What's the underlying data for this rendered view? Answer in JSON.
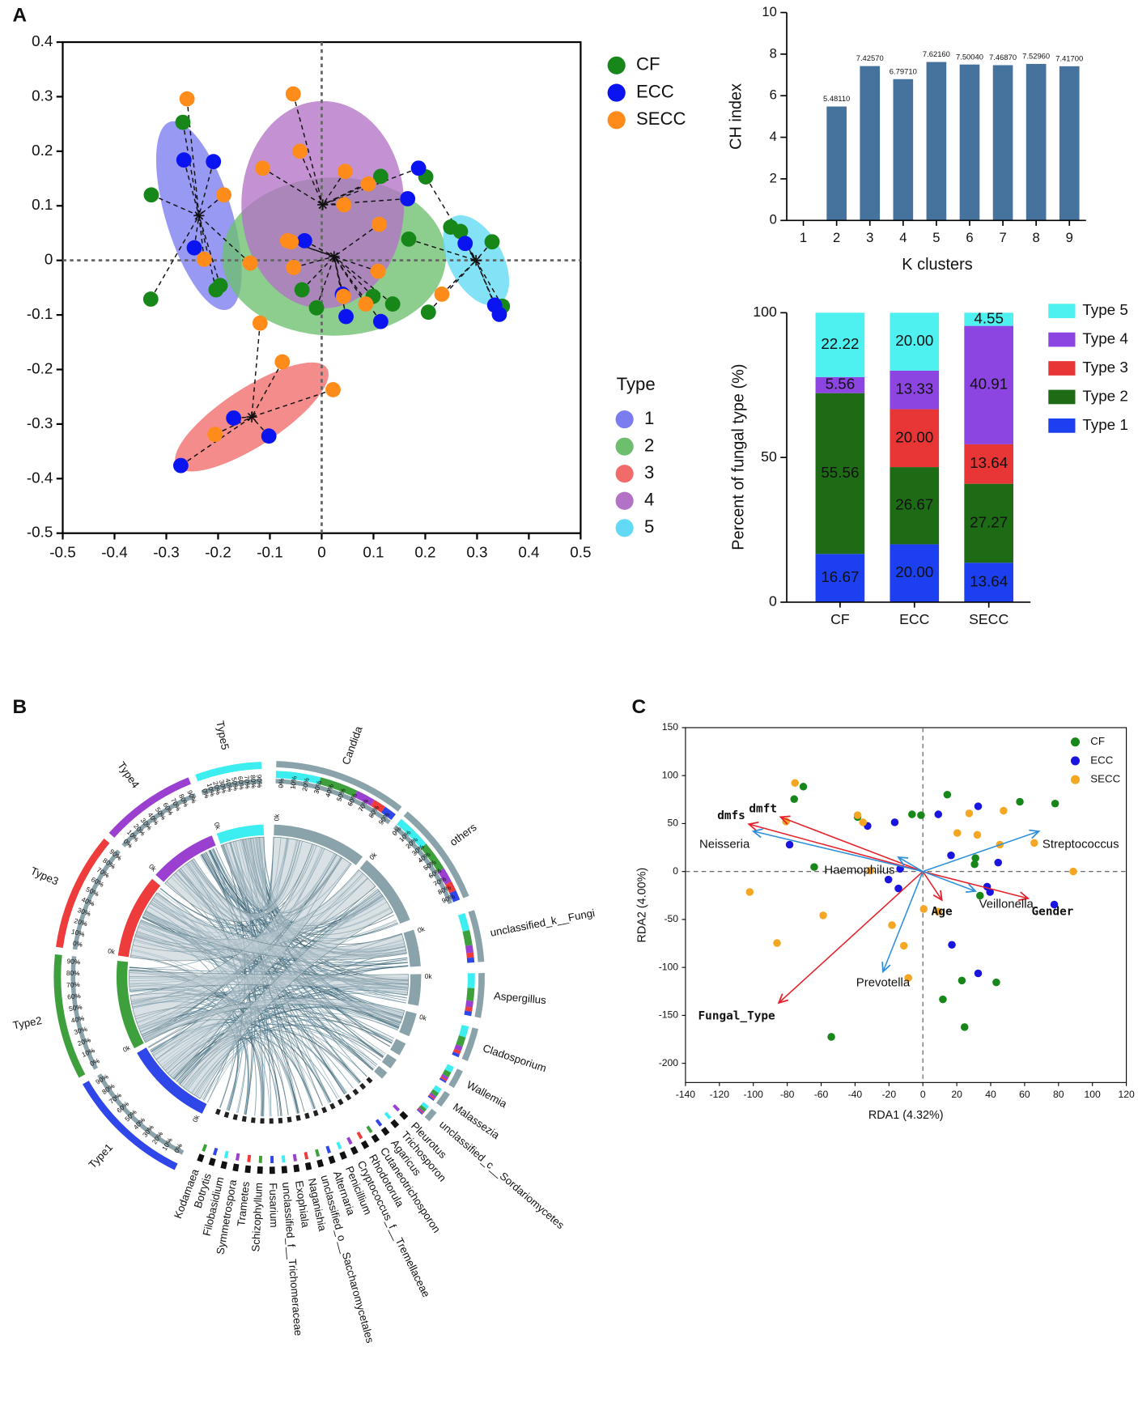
{
  "chart_data": [
    {
      "type": "scatter",
      "panel": "A",
      "xlim": [
        -0.5,
        0.5
      ],
      "xticks": [
        -0.5,
        -0.4,
        -0.3,
        -0.2,
        -0.1,
        0,
        0.1,
        0.2,
        0.3,
        0.4,
        0.5
      ],
      "ylim": [
        -0.5,
        0.4
      ],
      "yticks": [
        -0.5,
        -0.4,
        -0.3,
        -0.2,
        -0.1,
        0,
        0.1,
        0.2,
        0.3,
        0.4
      ],
      "series": [
        {
          "name": "CF",
          "color": "#17871a",
          "x": [
            -0.268,
            -0.329,
            -0.33,
            -0.204,
            -0.196,
            0.114,
            0.201,
            0.168,
            0.249,
            0.268,
            0.329,
            0.349,
            -0.038,
            -0.01,
            0.099,
            0.137,
            0.206
          ],
          "y": [
            0.253,
            0.12,
            -0.071,
            -0.054,
            -0.046,
            0.154,
            0.153,
            0.039,
            0.061,
            0.053,
            0.034,
            -0.084,
            -0.054,
            -0.087,
            -0.066,
            -0.08,
            -0.095
          ]
        },
        {
          "name": "ECC",
          "color": "#0a14f0",
          "x": [
            -0.266,
            -0.209,
            -0.246,
            -0.033,
            0.187,
            0.166,
            0.277,
            0.334,
            0.343,
            0.047,
            0.114,
            0.04,
            -0.17,
            -0.102,
            -0.272
          ],
          "y": [
            0.184,
            0.181,
            0.023,
            0.036,
            0.169,
            0.113,
            0.031,
            -0.082,
            -0.099,
            -0.103,
            -0.112,
            -0.062,
            -0.289,
            -0.322,
            -0.376
          ]
        },
        {
          "name": "SECC",
          "color": "#ff8c1a",
          "x": [
            -0.26,
            -0.055,
            -0.042,
            -0.114,
            -0.189,
            0.045,
            0.09,
            0.043,
            0.111,
            -0.066,
            -0.059,
            -0.227,
            -0.138,
            -0.054,
            0.109,
            0.042,
            0.085,
            0.232,
            -0.119,
            -0.076,
            0.022,
            -0.206
          ],
          "y": [
            0.296,
            0.305,
            0.2,
            0.169,
            0.12,
            0.163,
            0.14,
            0.102,
            0.066,
            0.036,
            0.034,
            0.002,
            -0.005,
            -0.013,
            -0.02,
            -0.066,
            -0.08,
            -0.062,
            -0.115,
            -0.186,
            -0.237,
            -0.319
          ]
        }
      ],
      "cluster_title": "Type",
      "clusters": [
        {
          "name": "1",
          "color": "#7b7cf0",
          "cx": -0.237,
          "cy": 0.082,
          "rx": 0.064,
          "ry": 0.18,
          "angle": -17
        },
        {
          "name": "2",
          "color": "#6dbf6d",
          "cx": 0.024,
          "cy": 0.007,
          "rx": 0.216,
          "ry": 0.145,
          "angle": 0
        },
        {
          "name": "3",
          "color": "#f26b6b",
          "cx": -0.135,
          "cy": -0.287,
          "rx": 0.173,
          "ry": 0.053,
          "angle": -33
        },
        {
          "name": "4",
          "color": "#b472c6",
          "cx": 0.002,
          "cy": 0.102,
          "rx": 0.157,
          "ry": 0.19,
          "angle": 0
        },
        {
          "name": "5",
          "color": "#62daf5",
          "cx": 0.298,
          "cy": 0.0,
          "rx": 0.052,
          "ry": 0.09,
          "angle": -28
        }
      ]
    },
    {
      "type": "bar",
      "xlabel": "K clusters",
      "ylabel": "CH index",
      "color": "#46739e",
      "categories": [
        "1",
        "2",
        "3",
        "4",
        "5",
        "6",
        "7",
        "8",
        "9"
      ],
      "values": [
        null,
        5.4811,
        7.4257,
        6.7971,
        7.6216,
        7.5004,
        7.4687,
        7.5296,
        7.417
      ],
      "value_labels": [
        null,
        "5.48110",
        "7.42570",
        "6.79710",
        "7.62160",
        "7.50040",
        "7.46870",
        "7.52960",
        "7.41700"
      ],
      "ylim": [
        0,
        10
      ],
      "yticks": [
        0,
        2,
        4,
        6,
        8,
        10
      ]
    },
    {
      "type": "bar",
      "stacked": true,
      "ylabel": "Percent of fungal type (%)",
      "categories": [
        "CF",
        "ECC",
        "SECC"
      ],
      "ylim": [
        0,
        100
      ],
      "yticks": [
        0,
        50,
        100
      ],
      "series": [
        {
          "name": "Type 1",
          "color": "#1c3ff0",
          "values": [
            16.67,
            20,
            13.64
          ],
          "value_labels": [
            "16.67",
            "20.00",
            "13.64"
          ]
        },
        {
          "name": "Type 2",
          "color": "#1e6b16",
          "values": [
            55.56,
            26.67,
            27.27
          ],
          "value_labels": [
            "55.56",
            "26.67",
            "27.27"
          ]
        },
        {
          "name": "Type 3",
          "color": "#e83535",
          "values": [
            0,
            20,
            13.64
          ],
          "value_labels": [
            null,
            "20.00",
            "13.64"
          ]
        },
        {
          "name": "Type 4",
          "color": "#8c45e0",
          "values": [
            5.56,
            13.33,
            40.91
          ],
          "value_labels": [
            "5.56",
            "13.33",
            "40.91"
          ]
        },
        {
          "name": "Type 5",
          "color": "#4ef0f0",
          "values": [
            22.22,
            20,
            4.55
          ],
          "value_labels": [
            "22.22",
            "20.00",
            "4.55"
          ]
        }
      ]
    },
    {
      "type": "chord",
      "panel": "B",
      "groups": [
        {
          "name": "Type1",
          "color": "#2f46e8"
        },
        {
          "name": "Type2",
          "color": "#3ea03c"
        },
        {
          "name": "Type3",
          "color": "#ee3b3b"
        },
        {
          "name": "Type4",
          "color": "#9a3fd0"
        },
        {
          "name": "Type5",
          "color": "#3ceef0"
        }
      ],
      "genera": [
        "Candida",
        "others",
        "unclassified_k__Fungi",
        "Aspergillus",
        "Cladosporium",
        "Wallemia",
        "Malassezia",
        "unclassified_c__Sordariomycetes",
        "Pleurotus",
        "Trichosporon",
        "Agaricus",
        "Cutaneotrichosporon",
        "Rhodotorula",
        "Cryptococcus_f__Tremellaceae",
        "Penicillium",
        "Alternaria",
        "unclassified_o__Saccharomycetales",
        "Naganishia",
        "Exophiala",
        "unclassified_f__Trichomeraceae",
        "Fusarium",
        "Schizophyllum",
        "Trametes",
        "Symmetrospora",
        "Filobasidium",
        "Botrytis",
        "Kodamaea"
      ],
      "ring_ticks": [
        "0%",
        "10%",
        "20%",
        "30%",
        "40%",
        "50%",
        "60%",
        "70%",
        "80%",
        "90%"
      ],
      "zero_label": "0k"
    },
    {
      "type": "scatter",
      "panel": "C",
      "xlabel": "RDA1 (4.32%)",
      "ylabel": "RDA2 (4.00%)",
      "xlim": [
        -140,
        120
      ],
      "xticks": [
        -140,
        -120,
        -100,
        -80,
        -60,
        -40,
        -20,
        0,
        20,
        40,
        60,
        80,
        100,
        120
      ],
      "ylim": [
        -220,
        150
      ],
      "yticks": [
        -200,
        -150,
        -100,
        -50,
        0,
        50,
        100,
        150
      ],
      "series": [
        {
          "name": "CF",
          "color": "#17871a",
          "x": [
            -70.5,
            -75.9,
            -38.5,
            -6.4,
            -1.1,
            14.4,
            31.0,
            30.5,
            57.2,
            78.0,
            33.7,
            -64.1,
            11.8,
            23.0,
            24.6,
            43.3,
            -54.0
          ],
          "y": [
            88.5,
            75.5,
            56.8,
            59.6,
            58.7,
            80.1,
            14.0,
            7.5,
            72.7,
            70.8,
            -25.2,
            4.7,
            -133.3,
            -113.7,
            -162.2,
            -115.6,
            -172.4
          ]
        },
        {
          "name": "ECC",
          "color": "#1a14e0",
          "x": [
            -32.6,
            -16.6,
            9.1,
            32.6,
            16.6,
            44.4,
            39.6,
            37.9,
            -13.4,
            -20.3,
            -14.4,
            17.1,
            32.6,
            77.5,
            -78.6
          ],
          "y": [
            47.5,
            51.3,
            59.6,
            68.0,
            16.8,
            9.3,
            -21.4,
            -15.8,
            2.8,
            -8.4,
            -17.7,
            -76.4,
            -106.2,
            -34.5,
            28.0
          ]
        },
        {
          "name": "SECC",
          "color": "#f5a623",
          "x": [
            -75.4,
            -80.7,
            -38.5,
            -35.3,
            27.3,
            47.6,
            20.3,
            32.1,
            45.4,
            65.7,
            88.7,
            -31.0,
            0.5,
            9.1,
            -18.2,
            -58.8,
            -86.0,
            -102.1,
            -8.6,
            -11.2
          ],
          "y": [
            92.3,
            52.2,
            58.7,
            51.3,
            60.6,
            63.4,
            40.1,
            38.2,
            28.0,
            29.8,
            0,
            0.9,
            -39.1,
            -41.9,
            -55.9,
            -45.7,
            -74.6,
            -21.4,
            -110.9,
            -77.4
          ]
        }
      ],
      "arrow_groups": [
        {
          "color": "#e5202a",
          "bold": true,
          "arrows": [
            {
              "name": "dmfs",
              "x": -102.6,
              "y": 49.4
            },
            {
              "name": "dmft",
              "x": -83.9,
              "y": 56.8
            },
            {
              "name": "Fungal_Type",
              "x": -85.0,
              "y": -137.0
            },
            {
              "name": "Age",
              "x": 11.2,
              "y": -29.8
            },
            {
              "name": "Gender",
              "x": 62.0,
              "y": -28.0
            }
          ]
        },
        {
          "color": "#2d8fdc",
          "bold": false,
          "arrows": [
            {
              "name": "Neisseria",
              "x": -100.0,
              "y": 42.0
            },
            {
              "name": "Haemophilus",
              "x": -14.4,
              "y": 14.9
            },
            {
              "name": "Streptococcus",
              "x": 68.4,
              "y": 41.9
            },
            {
              "name": "Veillonella",
              "x": 31.0,
              "y": -20.5
            },
            {
              "name": "Prevotella",
              "x": -23.5,
              "y": -104.4
            }
          ]
        }
      ]
    }
  ]
}
